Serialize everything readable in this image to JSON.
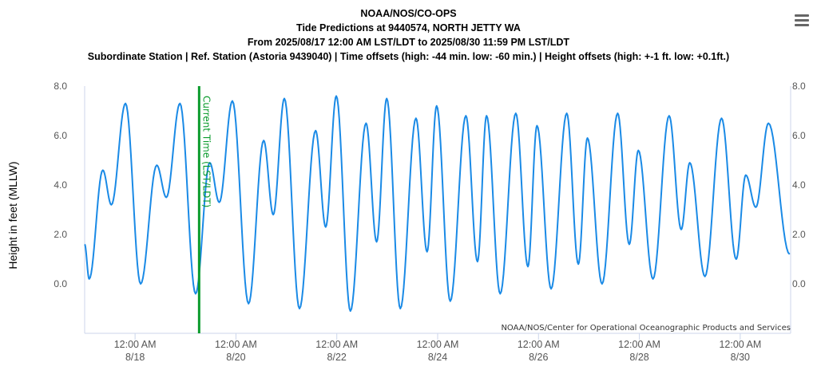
{
  "header": {
    "line1": "NOAA/NOS/CO-OPS",
    "line2": "Tide Predictions at 9440574, NORTH JETTY WA",
    "line3": "From 2025/08/17 12:00 AM LST/LDT to 2025/08/30 11:59 PM LST/LDT",
    "line4": "Subordinate Station | Ref. Station (Astoria 9439040) | Time offsets (high: -44 min. low: -60 min.) | Height offsets (high: +-1 ft. low: +0.1ft.)"
  },
  "menu_icon": "hamburger-menu-icon",
  "credit": "NOAA/NOS/Center for Operational Oceanographic Products and Services",
  "current_time_label": "Current Time (LST/LDT)",
  "colors": {
    "series": "#1a8ae6",
    "current_time": "#0a9b2c",
    "axis": "#ccd6eb",
    "text": "#555555"
  },
  "chart_data": {
    "type": "line",
    "ylabel": "Height in feet (MLLW)",
    "xlim_days": [
      0,
      14
    ],
    "ylim": [
      -2,
      8
    ],
    "y_ticks": [
      "8.0",
      "6.0",
      "4.0",
      "2.0",
      "0.0"
    ],
    "y_tick_values": [
      8,
      6,
      4,
      2,
      0
    ],
    "x_ticks": [
      {
        "day": 1,
        "line1": "12:00 AM",
        "line2": "8/18"
      },
      {
        "day": 3,
        "line1": "12:00 AM",
        "line2": "8/20"
      },
      {
        "day": 5,
        "line1": "12:00 AM",
        "line2": "8/22"
      },
      {
        "day": 7,
        "line1": "12:00 AM",
        "line2": "8/24"
      },
      {
        "day": 9,
        "line1": "12:00 AM",
        "line2": "8/26"
      },
      {
        "day": 11,
        "line1": "12:00 AM",
        "line2": "8/28"
      },
      {
        "day": 13,
        "line1": "12:00 AM",
        "line2": "8/30"
      }
    ],
    "current_time_day": 2.27,
    "series": [
      {
        "extrema": [
          [
            0.0,
            1.6
          ],
          [
            0.09,
            0.2
          ],
          [
            0.36,
            4.6
          ],
          [
            0.53,
            3.2
          ],
          [
            0.81,
            7.3
          ],
          [
            1.11,
            0.0
          ],
          [
            1.43,
            4.8
          ],
          [
            1.62,
            3.5
          ],
          [
            1.89,
            7.3
          ],
          [
            2.2,
            -0.4
          ],
          [
            2.48,
            4.9
          ],
          [
            2.67,
            3.3
          ],
          [
            2.93,
            7.4
          ],
          [
            3.25,
            -0.8
          ],
          [
            3.55,
            5.8
          ],
          [
            3.74,
            2.8
          ],
          [
            3.96,
            7.5
          ],
          [
            4.26,
            -1.0
          ],
          [
            4.58,
            6.2
          ],
          [
            4.78,
            2.3
          ],
          [
            4.99,
            7.6
          ],
          [
            5.27,
            -1.1
          ],
          [
            5.58,
            6.5
          ],
          [
            5.79,
            1.7
          ],
          [
            5.99,
            7.5
          ],
          [
            6.26,
            -1.0
          ],
          [
            6.57,
            6.7
          ],
          [
            6.79,
            1.3
          ],
          [
            6.98,
            7.2
          ],
          [
            7.25,
            -0.7
          ],
          [
            7.56,
            6.8
          ],
          [
            7.79,
            0.9
          ],
          [
            7.97,
            6.8
          ],
          [
            8.24,
            -0.4
          ],
          [
            8.55,
            6.9
          ],
          [
            8.79,
            0.7
          ],
          [
            8.97,
            6.4
          ],
          [
            9.25,
            -0.2
          ],
          [
            9.56,
            6.9
          ],
          [
            9.79,
            0.8
          ],
          [
            9.97,
            5.9
          ],
          [
            10.26,
            0.0
          ],
          [
            10.57,
            6.9
          ],
          [
            10.8,
            1.6
          ],
          [
            10.98,
            5.4
          ],
          [
            11.27,
            0.2
          ],
          [
            11.59,
            6.8
          ],
          [
            11.83,
            2.2
          ],
          [
            12.0,
            4.9
          ],
          [
            12.3,
            0.3
          ],
          [
            12.63,
            6.7
          ],
          [
            12.92,
            1.0
          ],
          [
            13.11,
            4.4
          ],
          [
            13.31,
            3.1
          ],
          [
            13.56,
            6.5
          ],
          [
            13.98,
            1.2
          ]
        ]
      }
    ]
  }
}
